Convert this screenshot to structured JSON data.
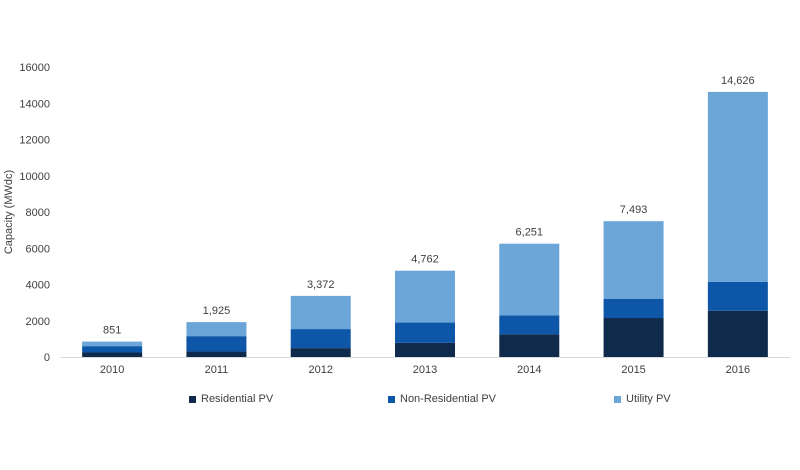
{
  "chart_data": {
    "type": "bar",
    "stacked": true,
    "title": "",
    "xlabel": "",
    "ylabel": "Capacity (MWdc)",
    "ylim": [
      0,
      16000
    ],
    "yticks": [
      "0",
      "2000",
      "4000",
      "6000",
      "8000",
      "10000",
      "12000",
      "14000",
      "16000"
    ],
    "grid": false,
    "legend_position": "bottom",
    "categories": [
      "2010",
      "2011",
      "2012",
      "2013",
      "2014",
      "2015",
      "2016"
    ],
    "series": [
      {
        "name": "Residential PV",
        "color": "#0f2a4a",
        "values": [
          250,
          300,
          490,
          780,
          1250,
          2150,
          2550
        ]
      },
      {
        "name": "Non-Residential PV",
        "color": "#0e56a8",
        "values": [
          350,
          850,
          1050,
          1120,
          1050,
          1050,
          1600
        ]
      },
      {
        "name": "Utility PV",
        "color": "#6ca6d9",
        "values": [
          251,
          775,
          1832,
          2862,
          3951,
          4293,
          10476
        ]
      }
    ],
    "totals": [
      "851",
      "1,925",
      "3,372",
      "4,762",
      "6,251",
      "7,493",
      "14,626"
    ]
  }
}
